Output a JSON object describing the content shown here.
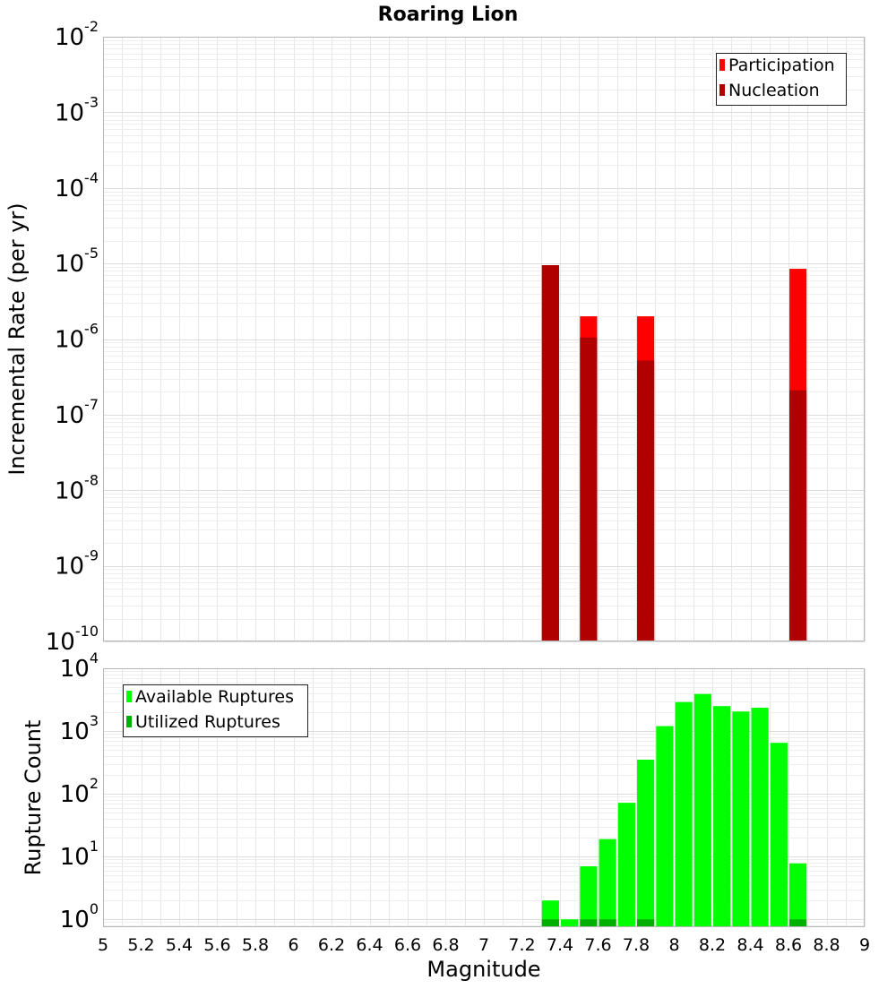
{
  "chart_data": {
    "title": "Roaring Lion",
    "xlabel": "Magnitude",
    "xlim": [
      5,
      9
    ],
    "x_ticks": [
      "5",
      "5.2",
      "5.4",
      "5.6",
      "5.8",
      "6",
      "6.2",
      "6.4",
      "6.6",
      "6.8",
      "7",
      "7.2",
      "7.4",
      "7.6",
      "7.8",
      "8",
      "8.2",
      "8.4",
      "8.6",
      "8.8",
      "9"
    ],
    "grid": true,
    "panels": [
      {
        "type": "bar",
        "ylabel": "Incremental Rate (per yr)",
        "yscale": "log",
        "ylim": [
          1e-10,
          0.01
        ],
        "y_tick_exponents": [
          "-10",
          "-9",
          "-8",
          "-7",
          "-6",
          "-5",
          "-4",
          "-3",
          "-2"
        ],
        "legend_position": "top-right",
        "series": [
          {
            "name": "Participation",
            "color": "#ff0000",
            "points": [
              {
                "x": 7.35,
                "y": 9.5e-06
              },
              {
                "x": 7.55,
                "y": 2e-06
              },
              {
                "x": 7.85,
                "y": 2e-06
              },
              {
                "x": 8.65,
                "y": 8.5e-06
              }
            ]
          },
          {
            "name": "Nucleation",
            "color": "#b00000",
            "points": [
              {
                "x": 7.35,
                "y": 9.5e-06
              },
              {
                "x": 7.55,
                "y": 1.05e-06
              },
              {
                "x": 7.85,
                "y": 5.2e-07
              },
              {
                "x": 8.65,
                "y": 2.1e-07
              }
            ]
          }
        ]
      },
      {
        "type": "bar",
        "ylabel": "Rupture Count",
        "yscale": "log",
        "ylim": [
          0.75,
          10000
        ],
        "y_tick_exponents": [
          "0",
          "1",
          "2",
          "3",
          "4"
        ],
        "legend_position": "top-left",
        "series": [
          {
            "name": "Available Ruptures",
            "color": "#00ff00",
            "points": [
              {
                "x": 7.35,
                "y": 2
              },
              {
                "x": 7.45,
                "y": 1
              },
              {
                "x": 7.55,
                "y": 7
              },
              {
                "x": 7.65,
                "y": 19
              },
              {
                "x": 7.75,
                "y": 72
              },
              {
                "x": 7.85,
                "y": 350
              },
              {
                "x": 7.95,
                "y": 1200
              },
              {
                "x": 8.05,
                "y": 2900
              },
              {
                "x": 8.15,
                "y": 3900
              },
              {
                "x": 8.25,
                "y": 2500
              },
              {
                "x": 8.35,
                "y": 2050
              },
              {
                "x": 8.45,
                "y": 2350
              },
              {
                "x": 8.55,
                "y": 650
              },
              {
                "x": 8.65,
                "y": 7.8
              }
            ]
          },
          {
            "name": "Utilized Ruptures",
            "color": "#00b000",
            "points": [
              {
                "x": 7.35,
                "y": 1
              },
              {
                "x": 7.55,
                "y": 1
              },
              {
                "x": 7.65,
                "y": 1
              },
              {
                "x": 7.85,
                "y": 1
              },
              {
                "x": 8.65,
                "y": 1
              }
            ]
          }
        ]
      }
    ]
  }
}
